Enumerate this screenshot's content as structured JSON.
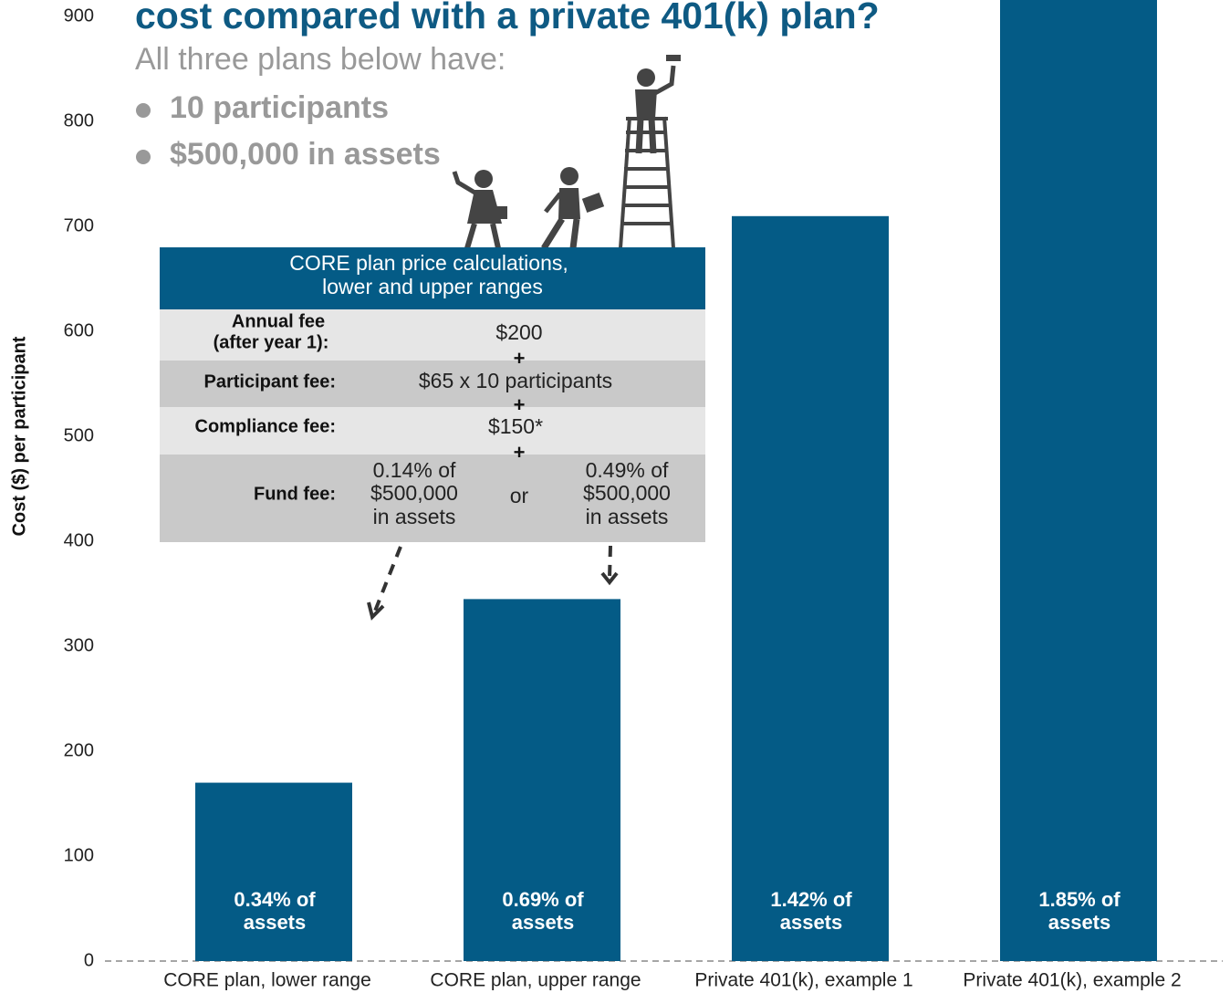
{
  "chart_data": {
    "type": "bar",
    "title": "cost compared with a private 401(k) plan?",
    "subtitle": "All three plans below have:",
    "bullets": [
      "10 participants",
      "$500,000 in assets"
    ],
    "y_label": "Cost ($) per participant",
    "categories": [
      "CORE plan, lower range",
      "CORE plan, upper range",
      "Private 401(k), example 1",
      "Private 401(k), example 2"
    ],
    "values": [
      170,
      345,
      710,
      925
    ],
    "color": "#045b86",
    "ylim": [
      0,
      916
    ],
    "yticks": [
      0,
      100,
      200,
      300,
      400,
      500,
      600,
      700,
      800,
      900
    ],
    "bar_labels": [
      [
        "0.34% of",
        "assets"
      ],
      [
        "0.69% of",
        "assets"
      ],
      [
        "1.42% of",
        "assets"
      ],
      [
        "1.85% of",
        "assets"
      ]
    ]
  },
  "inset": {
    "title": [
      "CORE plan price calculations,",
      "lower and upper ranges"
    ],
    "operator": "+",
    "rows": [
      {
        "label": [
          "Annual fee",
          "(after year 1):"
        ],
        "value": "$200"
      },
      {
        "label": [
          "Participant fee:"
        ],
        "value": "$65 x 10 participants"
      },
      {
        "label": [
          "Compliance fee:"
        ],
        "value": "$150*"
      },
      {
        "label": [
          "Fund fee:"
        ],
        "low": [
          "0.14% of",
          "$500,000",
          "in assets"
        ],
        "or": "or",
        "high": [
          "0.49% of",
          "$500,000",
          "in assets"
        ]
      }
    ]
  }
}
